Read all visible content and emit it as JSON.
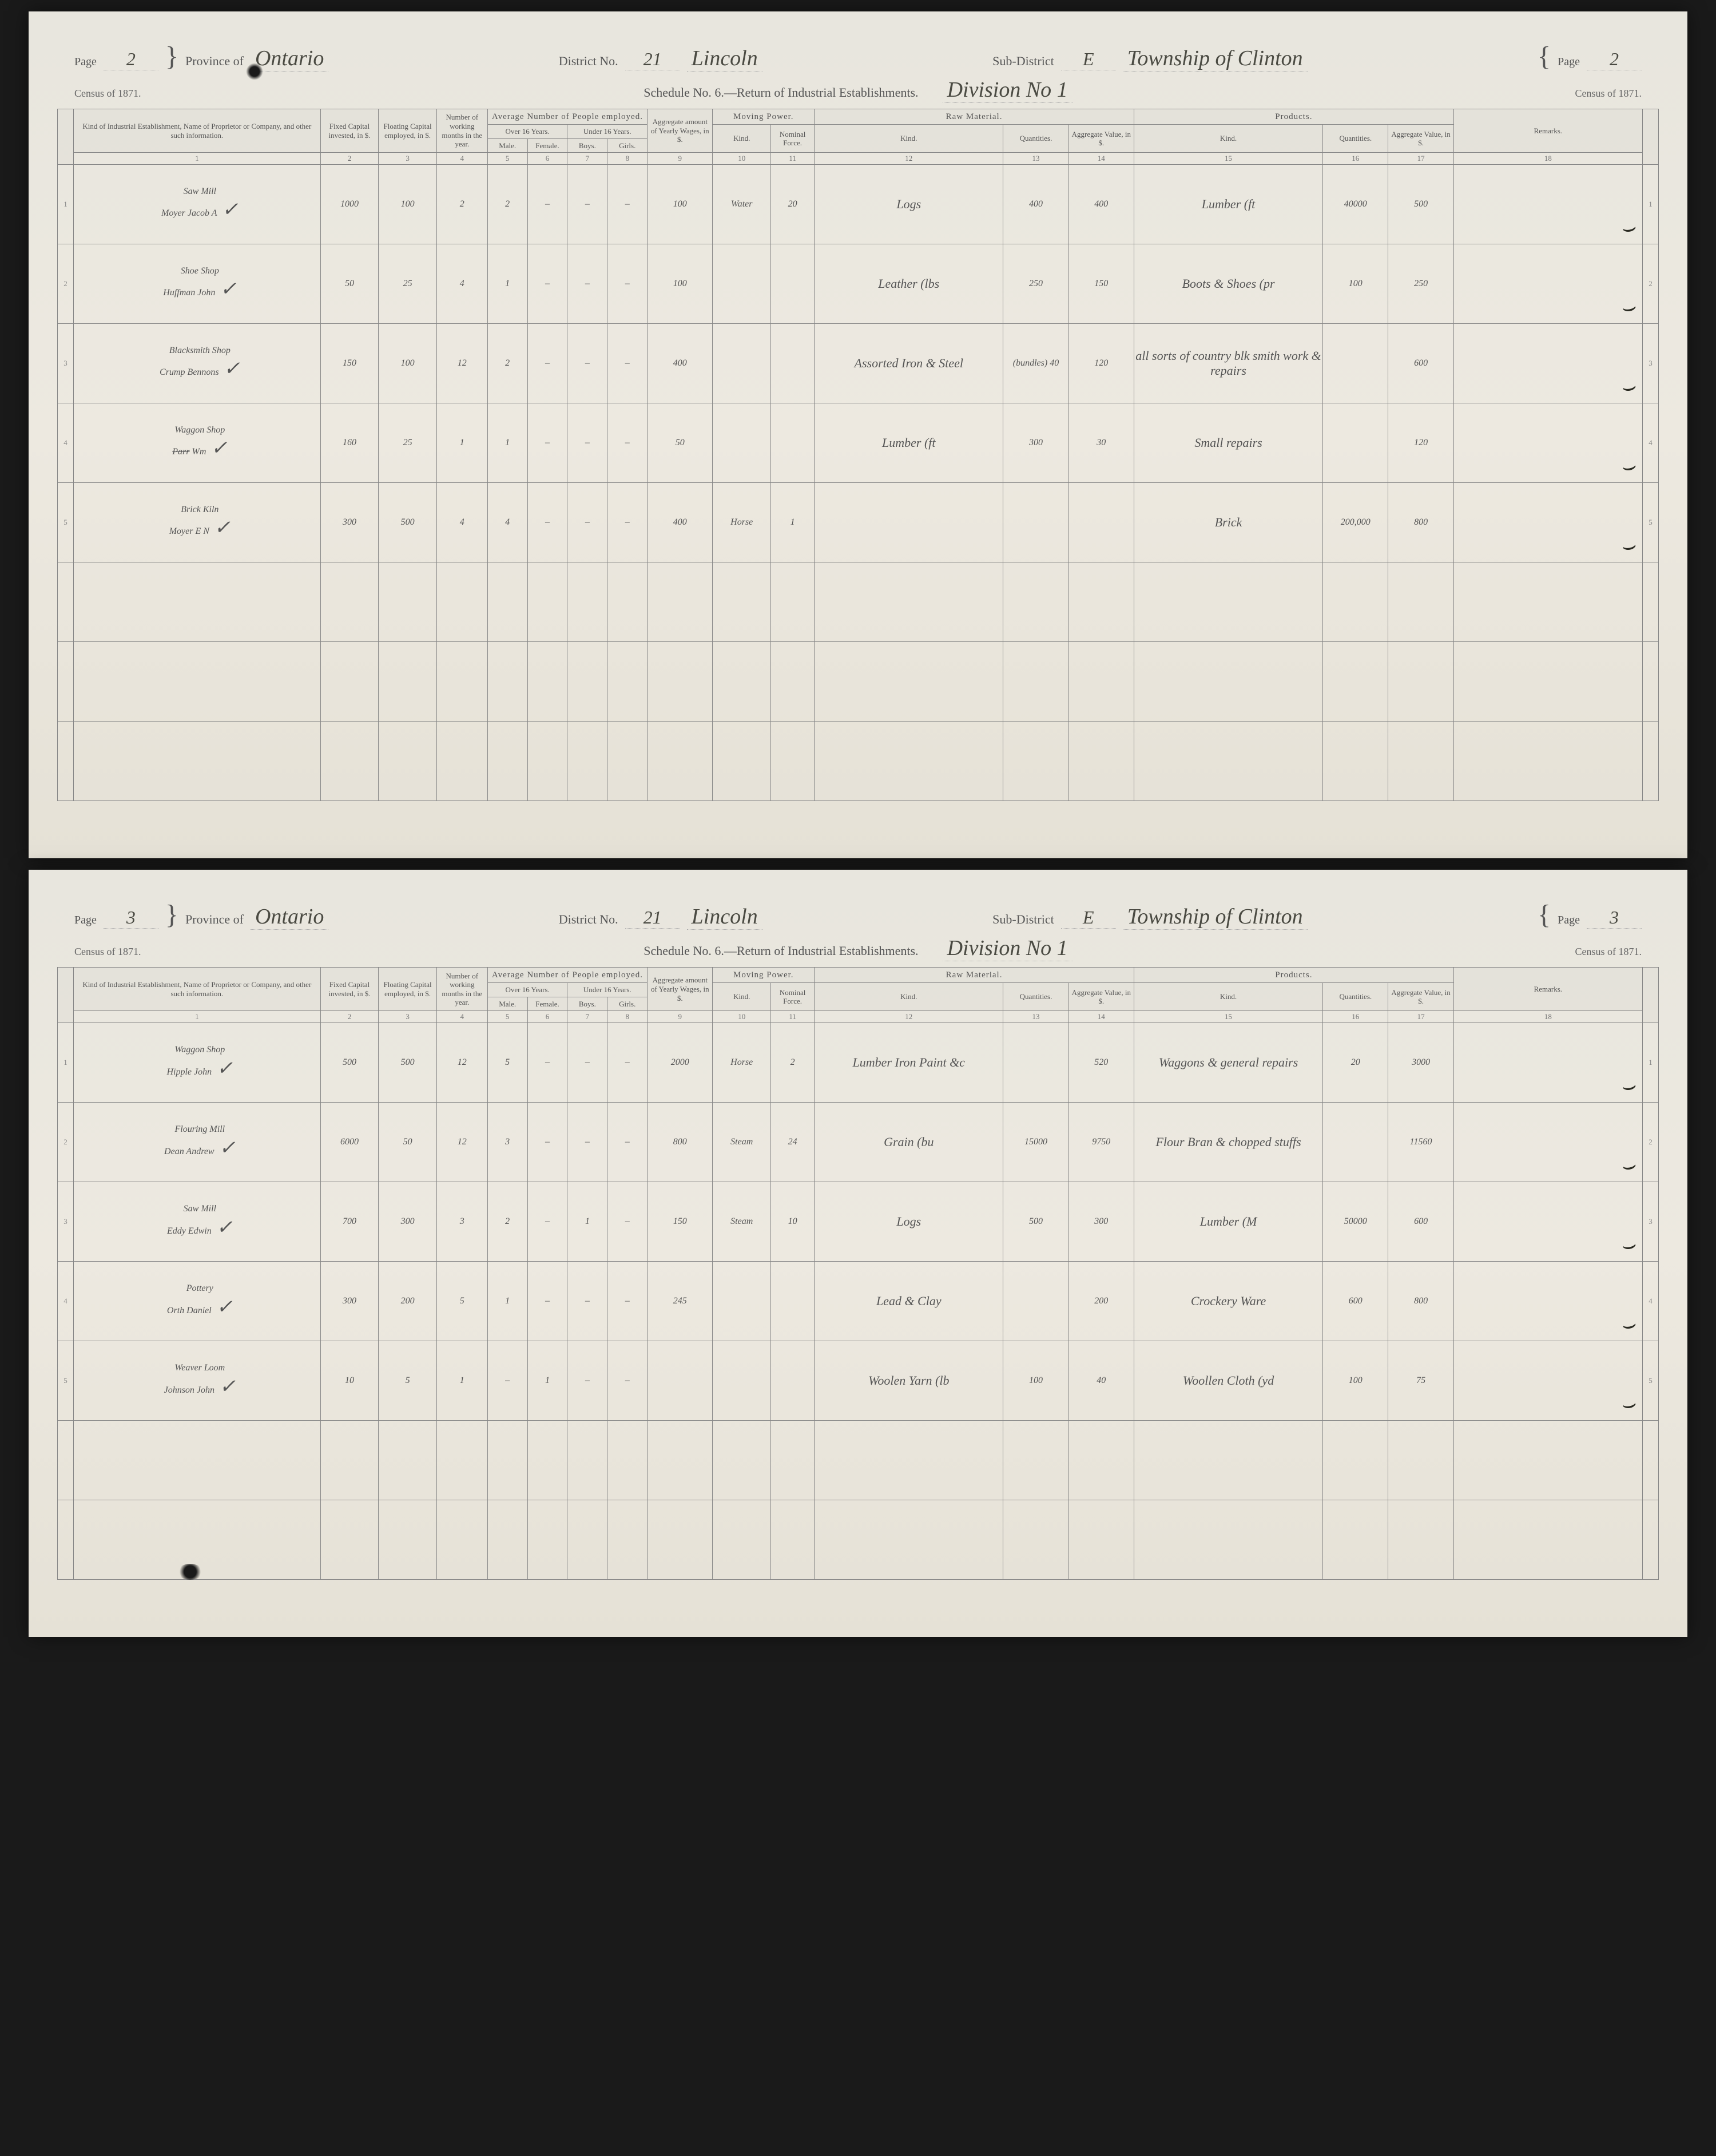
{
  "census_year": "1871",
  "schedule_title": "Schedule No. 6.—Return of Industrial Establishments.",
  "columns": {
    "c1": "Kind of Industrial Establishment, Name of Proprietor or Company, and other such information.",
    "c2": "Fixed Capital invested, in $.",
    "c3": "Floating Capital employed, in $.",
    "c4": "Number of working months in the year.",
    "group_people": "Average Number of People employed.",
    "group_over16": "Over 16 Years.",
    "group_under16": "Under 16 Years.",
    "c5": "Male.",
    "c6": "Female.",
    "c7": "Boys.",
    "c8": "Girls.",
    "c9": "Aggregate amount of Yearly Wages, in $.",
    "group_motive": "Moving Power.",
    "c10": "Kind.",
    "c11": "Nominal Force.",
    "group_raw": "Raw Material.",
    "c12": "Kind.",
    "c13": "Quantities.",
    "c14": "Aggregate Value, in $.",
    "group_prod": "Products.",
    "c15": "Kind.",
    "c16": "Quantities.",
    "c17": "Aggregate Value, in $.",
    "c18": "Remarks."
  },
  "pages": [
    {
      "page_no": "2",
      "province": "Ontario",
      "district_no": "21",
      "district_name": "Lincoln",
      "sub_district_letter": "E",
      "sub_district_name": "Township of Clinton",
      "division": "Division No 1",
      "rows": [
        {
          "n": "1",
          "estab": "Saw Mill<br>Moyer Jacob A",
          "c2": "1000",
          "c3": "100",
          "c4": "2",
          "c5": "2",
          "c6": "–",
          "c7": "–",
          "c8": "–",
          "c9": "100",
          "c10": "Water",
          "c11": "20",
          "c12": "Logs",
          "c13": "400",
          "c14": "400",
          "c15": "Lumber (ft",
          "c16": "40000",
          "c17": "500",
          "check": true
        },
        {
          "n": "2",
          "estab": "Shoe Shop<br>Huffman John",
          "c2": "50",
          "c3": "25",
          "c4": "4",
          "c5": "1",
          "c6": "–",
          "c7": "–",
          "c8": "–",
          "c9": "100",
          "c10": "",
          "c11": "",
          "c12": "Leather (lbs",
          "c13": "250",
          "c14": "150",
          "c15": "Boots & Shoes (pr",
          "c16": "100",
          "c17": "250",
          "check": true
        },
        {
          "n": "3",
          "estab": "Blacksmith Shop<br>Crump Bennons",
          "c2": "150",
          "c3": "100",
          "c4": "12",
          "c5": "2",
          "c6": "–",
          "c7": "–",
          "c8": "–",
          "c9": "400",
          "c10": "",
          "c11": "",
          "c12": "Assorted Iron & Steel",
          "c13": "(bundles) 40",
          "c14": "120",
          "c15": "all sorts of country blk smith work & repairs",
          "c16": "",
          "c17": "600",
          "check": true
        },
        {
          "n": "4",
          "estab": "Waggon Shop<br><s>Parr</s> Wm",
          "c2": "160",
          "c3": "25",
          "c4": "1",
          "c5": "1",
          "c6": "–",
          "c7": "–",
          "c8": "–",
          "c9": "50",
          "c10": "",
          "c11": "",
          "c12": "Lumber (ft",
          "c13": "300",
          "c14": "30",
          "c15": "Small repairs",
          "c16": "",
          "c17": "120",
          "check": true
        },
        {
          "n": "5",
          "estab": "Brick Kiln<br>Moyer E N",
          "c2": "300",
          "c3": "500",
          "c4": "4",
          "c5": "4",
          "c6": "–",
          "c7": "–",
          "c8": "–",
          "c9": "400",
          "c10": "Horse",
          "c11": "1",
          "c12": "",
          "c13": "",
          "c14": "",
          "c15": "Brick",
          "c16": "200,000",
          "c17": "800",
          "check": true
        }
      ],
      "blank_rows": 3
    },
    {
      "page_no": "3",
      "province": "Ontario",
      "district_no": "21",
      "district_name": "Lincoln",
      "sub_district_letter": "E",
      "sub_district_name": "Township of Clinton",
      "division": "Division No 1",
      "rows": [
        {
          "n": "1",
          "estab": "Waggon Shop<br>Hipple John",
          "c2": "500",
          "c3": "500",
          "c4": "12",
          "c5": "5",
          "c6": "–",
          "c7": "–",
          "c8": "–",
          "c9": "2000",
          "c10": "Horse",
          "c11": "2",
          "c12": "Lumber Iron Paint &c",
          "c13": "",
          "c14": "520",
          "c15": "Waggons & general repairs",
          "c16": "20",
          "c17": "3000",
          "check": true
        },
        {
          "n": "2",
          "estab": "Flouring Mill<br>Dean Andrew",
          "c2": "6000",
          "c3": "50",
          "c4": "12",
          "c5": "3",
          "c6": "–",
          "c7": "–",
          "c8": "–",
          "c9": "800",
          "c10": "Steam",
          "c11": "24",
          "c12": "Grain (bu",
          "c13": "15000",
          "c14": "9750",
          "c15": "Flour Bran & chopped stuffs",
          "c16": "",
          "c17": "11560",
          "check": true
        },
        {
          "n": "3",
          "estab": "Saw Mill<br>Eddy Edwin",
          "c2": "700",
          "c3": "300",
          "c4": "3",
          "c5": "2",
          "c6": "–",
          "c7": "1",
          "c8": "–",
          "c9": "150",
          "c10": "Steam",
          "c11": "10",
          "c12": "Logs",
          "c13": "500",
          "c14": "300",
          "c15": "Lumber (M",
          "c16": "50000",
          "c17": "600",
          "check": true
        },
        {
          "n": "4",
          "estab": "Pottery<br>Orth Daniel",
          "c2": "300",
          "c3": "200",
          "c4": "5",
          "c5": "1",
          "c6": "–",
          "c7": "–",
          "c8": "–",
          "c9": "245",
          "c10": "",
          "c11": "",
          "c12": "Lead & Clay",
          "c13": "",
          "c14": "200",
          "c15": "Crockery Ware",
          "c16": "600",
          "c17": "800",
          "check": true
        },
        {
          "n": "5",
          "estab": "Weaver Loom<br>Johnson John",
          "c2": "10",
          "c3": "5",
          "c4": "1",
          "c5": "–",
          "c6": "1",
          "c7": "–",
          "c8": "–",
          "c9": "",
          "c10": "",
          "c11": "",
          "c12": "Woolen Yarn (lb",
          "c13": "100",
          "c14": "40",
          "c15": "Woollen Cloth (yd",
          "c16": "100",
          "c17": "75",
          "check": true
        }
      ],
      "blank_rows": 2
    }
  ]
}
